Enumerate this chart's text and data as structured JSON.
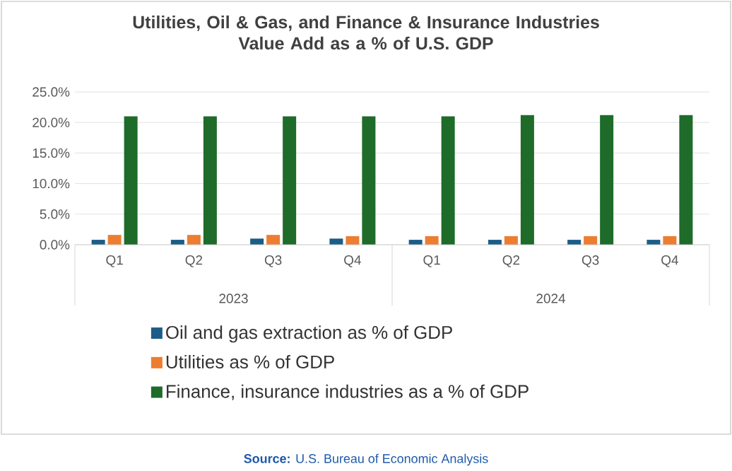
{
  "chart_data": {
    "type": "bar",
    "title": "Utilities, Oil & Gas, and Finance & Insurance Industries\nValue Add as a % of U.S. GDP",
    "categories": [
      "Q1",
      "Q2",
      "Q3",
      "Q4",
      "Q1",
      "Q2",
      "Q3",
      "Q4"
    ],
    "series": [
      {
        "name": "Oil and gas extraction as % of GDP",
        "color": "#1b5d87",
        "values": [
          0.8,
          0.8,
          1.0,
          1.0,
          0.8,
          0.8,
          0.8,
          0.8
        ]
      },
      {
        "name": "Utilities as % of GDP",
        "color": "#ed7d31",
        "values": [
          1.6,
          1.6,
          1.6,
          1.4,
          1.4,
          1.4,
          1.4,
          1.4
        ]
      },
      {
        "name": "Finance, insurance industries as a % of GDP",
        "color": "#1e6b2a",
        "values": [
          21.0,
          21.0,
          21.0,
          21.0,
          21.0,
          21.2,
          21.2,
          21.2
        ]
      }
    ],
    "ylim": [
      0,
      25
    ],
    "yticks": [
      {
        "value": 0,
        "label": "0.0%"
      },
      {
        "value": 5,
        "label": "5.0%"
      },
      {
        "value": 10,
        "label": "10.0%"
      },
      {
        "value": 15,
        "label": "15.0%"
      },
      {
        "value": 20,
        "label": "20.0%"
      },
      {
        "value": 25,
        "label": "25.0%"
      }
    ],
    "grid": "y",
    "legend": "bottom",
    "annotations": [
      "2023",
      "2024",
      "**Source:** U.S. Bureau of Economic Analysis"
    ]
  }
}
